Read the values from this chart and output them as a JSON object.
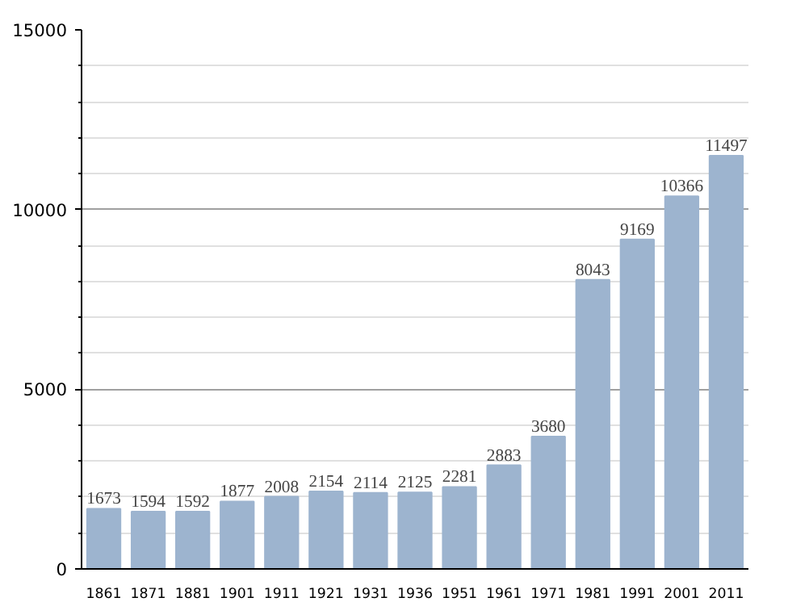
{
  "chart_data": {
    "type": "bar",
    "categories": [
      "1861",
      "1871",
      "1881",
      "1901",
      "1911",
      "1921",
      "1931",
      "1936",
      "1951",
      "1961",
      "1971",
      "1981",
      "1991",
      "2001",
      "2011"
    ],
    "values": [
      1673,
      1594,
      1592,
      1877,
      2008,
      2154,
      2114,
      2125,
      2281,
      2883,
      3680,
      8043,
      9169,
      10366,
      11497
    ],
    "color": "#9db4cf",
    "ylim": [
      0,
      15000
    ],
    "yticks": [
      0,
      5000,
      10000,
      15000
    ],
    "grid": "y",
    "data_labels": true
  }
}
